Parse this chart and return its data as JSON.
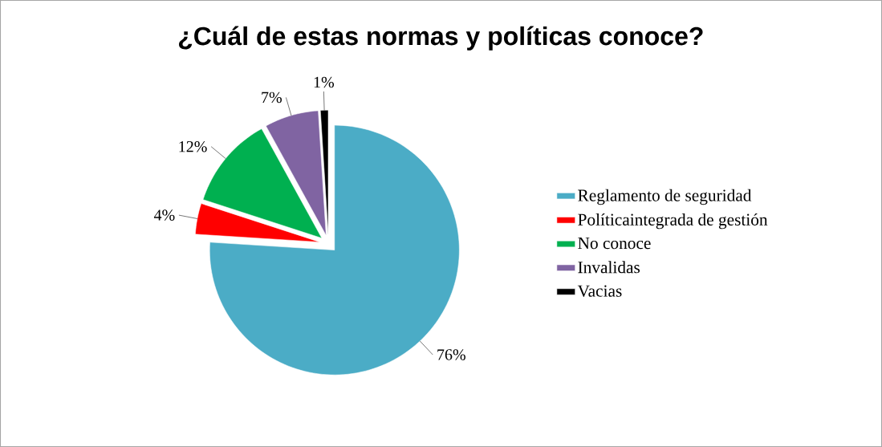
{
  "chart_data": {
    "type": "pie",
    "title": "¿Cuál de estas normas y políticas conoce?",
    "categories": [
      "Reglamento de seguridad",
      "Políticaintegrada de gestión",
      "No conoce",
      "Invalidas",
      "Vacias"
    ],
    "values": [
      76,
      4,
      12,
      7,
      1
    ],
    "value_labels": [
      "76%",
      "4%",
      "12%",
      "7%",
      "1%"
    ],
    "colors": [
      "#4bacc6",
      "#ff0000",
      "#00b050",
      "#8064a2",
      "#000000"
    ],
    "legend": "right"
  }
}
